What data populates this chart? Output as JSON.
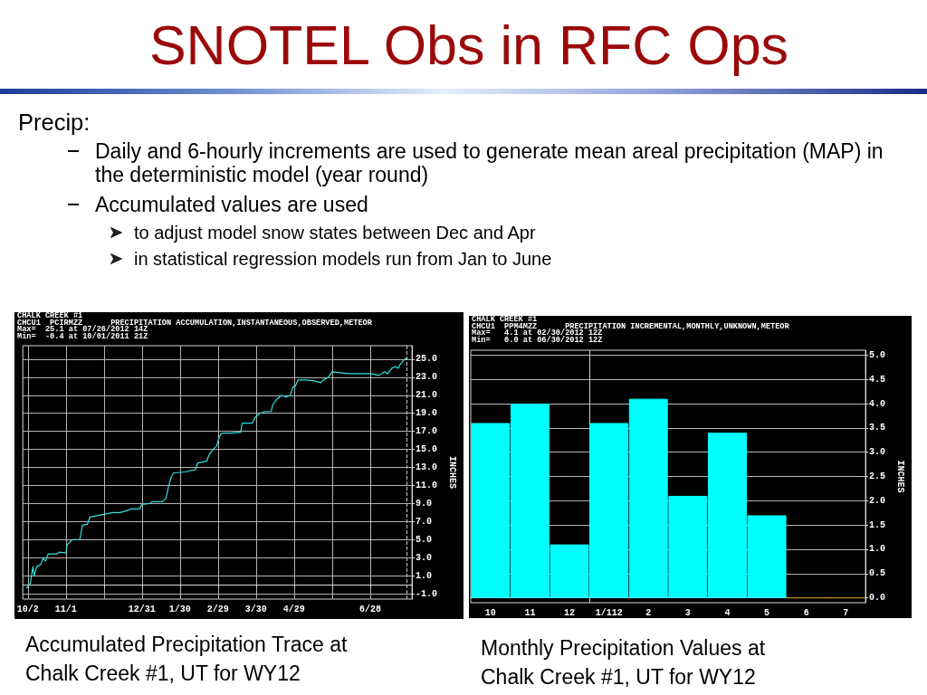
{
  "chart_data": [
    {
      "type": "other",
      "title": "SNOTEL Obs in RFC Ops",
      "annotations": [
        "Precip:",
        "Daily and 6-hourly increments are used to generate mean areal precipitation (MAP) in the deterministic model (year round)",
        "Accumulated values are used",
        "to adjust model snow states between Dec and Apr",
        "in statistical regression models run from Jan to June"
      ]
    },
    {
      "type": "line",
      "title": "CHALK CREEK #1",
      "subtitle": "CHCU1  PCIRMZZ      PRECIPITATION ACCUMULATION,INSTANTANEOUS,OBSERVED,METEOR",
      "annotations": [
        "Max=  25.1 at 07/26/2012 14Z",
        "Min=  -0.4 at 10/01/2011 21Z",
        "Accumulated Precipitation Trace at Chalk Creek #1, UT for WY12"
      ],
      "ylabel": "INCHES",
      "x": [
        "2011-10-01",
        "2011-10-04",
        "2011-10-06",
        "2011-10-07",
        "2011-10-09",
        "2011-10-12",
        "2011-10-14",
        "2011-10-16",
        "2011-10-18",
        "2011-10-25",
        "2011-10-27",
        "2011-11-01",
        "2011-11-02",
        "2011-11-06",
        "2011-11-12",
        "2011-11-14",
        "2011-11-18",
        "2011-11-20",
        "2011-12-01",
        "2011-12-08",
        "2011-12-14",
        "2011-12-21",
        "2011-12-22",
        "2011-12-29",
        "2011-12-31",
        "2012-01-06",
        "2012-01-08",
        "2012-01-16",
        "2012-01-19",
        "2012-01-21",
        "2012-01-23",
        "2012-01-25",
        "2012-02-04",
        "2012-02-08",
        "2012-02-11",
        "2012-02-13",
        "2012-02-20",
        "2012-02-22",
        "2012-02-25",
        "2012-02-28",
        "2012-03-01",
        "2012-03-03",
        "2012-03-10",
        "2012-03-18",
        "2012-03-19",
        "2012-03-27",
        "2012-03-29",
        "2012-04-02",
        "2012-04-06",
        "2012-04-11",
        "2012-04-12",
        "2012-04-15",
        "2012-04-19",
        "2012-04-23",
        "2012-04-26",
        "2012-04-28",
        "2012-04-30",
        "2012-05-02",
        "2012-05-08",
        "2012-05-15",
        "2012-05-20",
        "2012-05-22",
        "2012-05-26",
        "2012-05-29",
        "2012-06-04",
        "2012-06-11",
        "2012-06-20",
        "2012-06-29",
        "2012-07-05",
        "2012-07-09",
        "2012-07-12",
        "2012-07-15",
        "2012-07-18",
        "2012-07-20",
        "2012-07-22",
        "2012-07-26",
        "2012-07-27"
      ],
      "values": [
        -0.4,
        0.2,
        2.0,
        1.0,
        2.0,
        2.2,
        2.9,
        2.6,
        3.4,
        3.4,
        3.6,
        3.5,
        4.4,
        5.0,
        5.0,
        6.6,
        6.7,
        7.5,
        7.8,
        8.0,
        8.0,
        8.3,
        8.4,
        8.4,
        8.9,
        9.0,
        9.2,
        9.2,
        9.6,
        10.9,
        11.9,
        12.4,
        12.5,
        12.7,
        12.7,
        13.5,
        13.7,
        14.4,
        15.0,
        15.4,
        16.4,
        16.8,
        16.8,
        16.9,
        17.9,
        17.9,
        18.5,
        19.0,
        19.2,
        19.2,
        19.9,
        20.5,
        21.0,
        20.8,
        21.0,
        21.9,
        22.0,
        22.7,
        22.7,
        22.6,
        22.4,
        22.7,
        23.0,
        23.6,
        23.5,
        23.4,
        23.4,
        23.4,
        23.2,
        23.6,
        23.4,
        24.0,
        24.2,
        24.0,
        24.5,
        25.1,
        25.0
      ],
      "color": "#33e0e0",
      "xlim": [
        "2011-09-28",
        "2012-07-31"
      ],
      "xticks": [
        {
          "value": "2011-10-02",
          "label": "10/2"
        },
        {
          "value": "2011-11-01",
          "label": "11/1"
        },
        {
          "value": "2011-12-01",
          "label": null
        },
        {
          "value": "2011-12-31",
          "label": "12/31"
        },
        {
          "value": "2012-01-30",
          "label": "1/30"
        },
        {
          "value": "2012-02-29",
          "label": "2/29"
        },
        {
          "value": "2012-03-30",
          "label": "3/30"
        },
        {
          "value": "2012-04-29",
          "label": "4/29"
        },
        {
          "value": "2012-05-29",
          "label": null
        },
        {
          "value": "2012-06-28",
          "label": "6/28"
        }
      ],
      "ylim": [
        -1.6,
        26.5
      ],
      "yticks": [
        {
          "value": -1,
          "label": "-1.0"
        },
        {
          "value": 1,
          "label": "1.0"
        },
        {
          "value": 3,
          "label": "3.0"
        },
        {
          "value": 5,
          "label": "5.0"
        },
        {
          "value": 7,
          "label": "7.0"
        },
        {
          "value": 9,
          "label": "9.0"
        },
        {
          "value": 11,
          "label": "11.0"
        },
        {
          "value": 13,
          "label": "13.0"
        },
        {
          "value": 15,
          "label": "15.0"
        },
        {
          "value": 17,
          "label": "17.0"
        },
        {
          "value": 19,
          "label": "19.0"
        },
        {
          "value": 21,
          "label": "21.0"
        },
        {
          "value": 23,
          "label": "23.0"
        },
        {
          "value": 25,
          "label": "25.0"
        }
      ],
      "grid": true,
      "line_style": "solid",
      "ref_lines": [
        {
          "axis": "x",
          "value": "2012-07-27",
          "line_style": "dashed",
          "color": "#c8c8c8"
        }
      ]
    },
    {
      "type": "bar",
      "title": "CHALK CREEK #1",
      "subtitle": "CHCU1  PPM4MZZ      PRECIPITATION INCREMENTAL,MONTHLY,UNKNOWN,METEOR",
      "annotations": [
        "Max=   4.1 at 02/30/2012 12Z",
        "Min=   0.0 at 06/30/2012 12Z",
        "Monthly Precipitation Values at Chalk Creek #1, UT for WY12"
      ],
      "ylabel": "INCHES",
      "categories": [
        "10",
        "11",
        "12",
        "1/112",
        "2",
        "3",
        "4",
        "5",
        "6",
        "7"
      ],
      "values": [
        3.6,
        4.0,
        1.1,
        3.6,
        4.1,
        2.1,
        3.4,
        1.7,
        0.0,
        0.0
      ],
      "colors": [
        "#00ffff",
        "#00ffff",
        "#00ffff",
        "#00ffff",
        "#00ffff",
        "#00ffff",
        "#00ffff",
        "#00ffff",
        "#b8862b",
        "#b8862b"
      ],
      "ylim": [
        -0.1,
        5.1
      ],
      "yticks": [
        {
          "value": 0,
          "label": "0.0"
        },
        {
          "value": 0.5,
          "label": "0.5"
        },
        {
          "value": 1,
          "label": "1.0"
        },
        {
          "value": 1.5,
          "label": "1.5"
        },
        {
          "value": 2,
          "label": "2.0"
        },
        {
          "value": 2.5,
          "label": "2.5"
        },
        {
          "value": 3,
          "label": "3.0"
        },
        {
          "value": 3.5,
          "label": "3.5"
        },
        {
          "value": 4,
          "label": "4.0"
        },
        {
          "value": 4.5,
          "label": "4.5"
        },
        {
          "value": 5,
          "label": "5.0"
        }
      ],
      "grid": "y",
      "ref_lines": [
        {
          "axis": "x",
          "value": "1/112",
          "color": "#c8c8c8"
        }
      ]
    }
  ]
}
